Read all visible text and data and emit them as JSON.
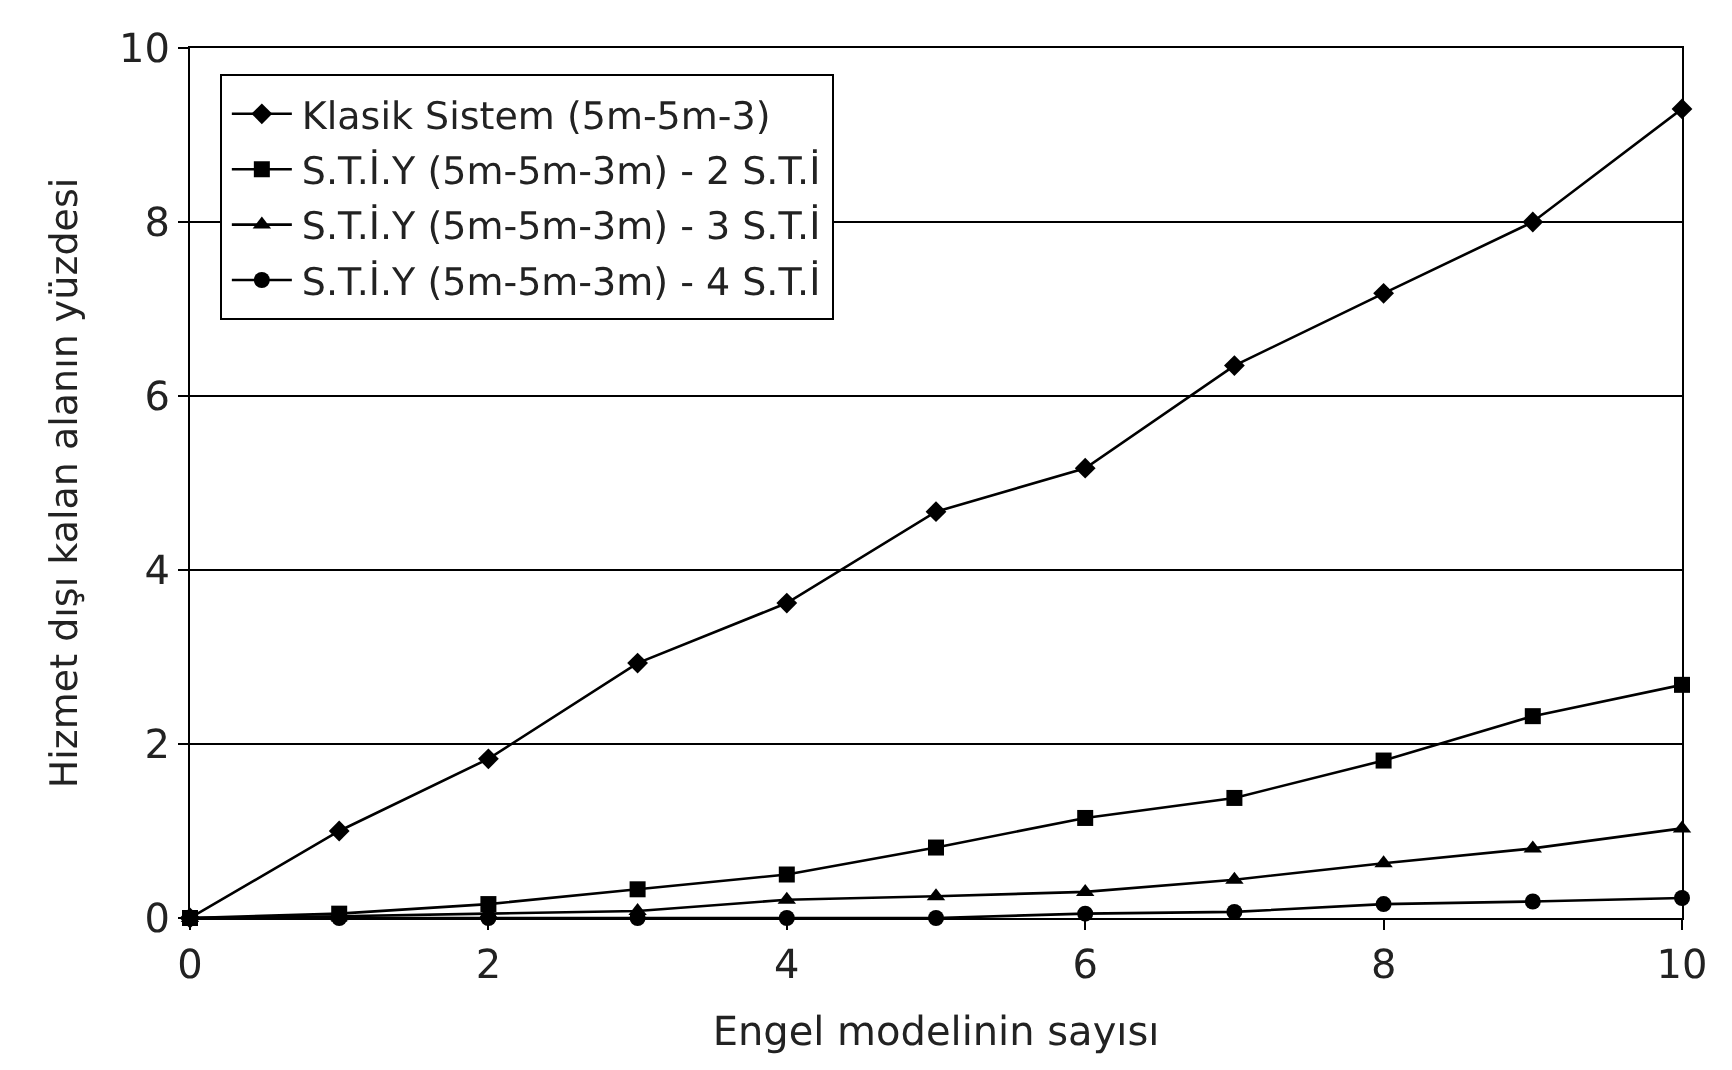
{
  "chart_data": {
    "type": "line",
    "xlabel": "Engel modelinin sayısı",
    "ylabel": "Hizmet dışı kalan alanın yüzdesi",
    "x": [
      0,
      1,
      2,
      3,
      4,
      5,
      6,
      7,
      8,
      9,
      10
    ],
    "series": [
      {
        "name": "Klasik Sistem (5m-5m-3)",
        "color": "#000000",
        "marker": "diamond",
        "values": [
          0,
          1.0,
          1.83,
          2.93,
          3.62,
          4.67,
          5.17,
          6.35,
          7.18,
          8.0,
          9.3
        ]
      },
      {
        "name": "S.T.İ.Y (5m-5m-3m) - 2 S.T.İ",
        "color": "#000000",
        "marker": "square",
        "values": [
          0,
          0.05,
          0.16,
          0.33,
          0.5,
          0.81,
          1.15,
          1.38,
          1.81,
          2.32,
          2.68
        ]
      },
      {
        "name": "S.T.İ.Y (5m-5m-3m) - 3 S.T.İ",
        "color": "#000000",
        "marker": "triangle",
        "values": [
          0,
          0.02,
          0.05,
          0.08,
          0.21,
          0.25,
          0.3,
          0.44,
          0.63,
          0.8,
          1.03
        ]
      },
      {
        "name": "S.T.İ.Y (5m-5m-3m) - 4 S.T.İ",
        "color": "#000000",
        "marker": "circle",
        "values": [
          0,
          0,
          0,
          0,
          0,
          0,
          0.05,
          0.07,
          0.16,
          0.19,
          0.23
        ]
      }
    ],
    "xlim": [
      0,
      10
    ],
    "xticks": [
      0,
      2,
      4,
      6,
      8,
      10
    ],
    "ylim": [
      0,
      10
    ],
    "yticks": [
      0,
      2,
      4,
      6,
      8,
      10
    ],
    "grid": "y",
    "legend": "top left",
    "line_style": "solid"
  }
}
